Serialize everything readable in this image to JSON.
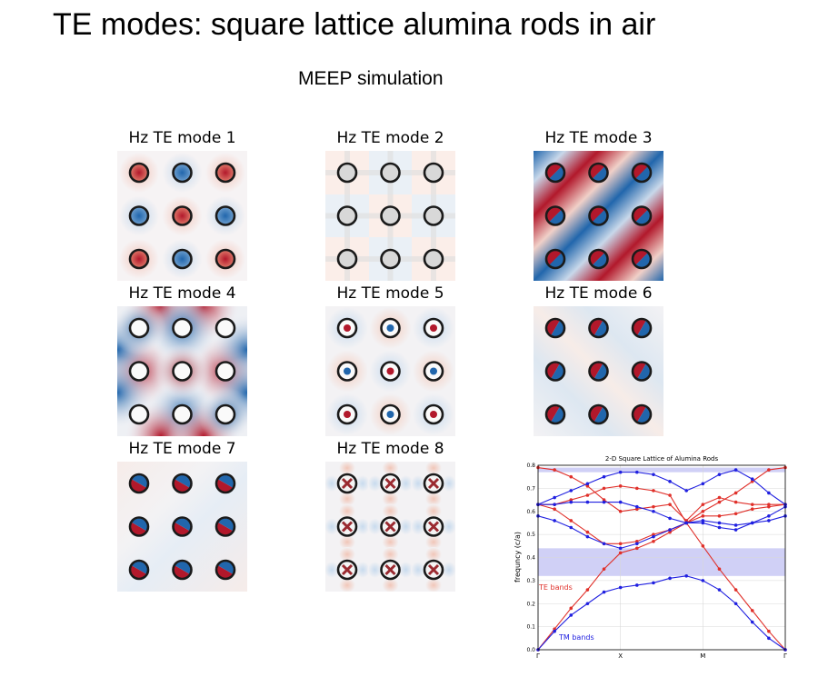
{
  "slide": {
    "title": "TE modes: square lattice alumina rods in air",
    "subtitle": "MEEP simulation"
  },
  "panels": [
    {
      "label": "Hz TE mode 1"
    },
    {
      "label": "Hz TE mode 2"
    },
    {
      "label": "Hz TE mode 3"
    },
    {
      "label": "Hz TE mode 4"
    },
    {
      "label": "Hz TE mode 5"
    },
    {
      "label": "Hz TE mode 6"
    },
    {
      "label": "Hz TE mode 7"
    },
    {
      "label": "Hz TE mode 8"
    }
  ],
  "colors": {
    "red": "#b2182b",
    "blue": "#2166ac",
    "te": "#e0302a",
    "tm": "#2020e0",
    "gap": "#c8c8f4"
  },
  "chart_data": {
    "type": "line",
    "title": "2-D Square Lattice of Alumina Rods",
    "ylabel": "frequncy (c/a)",
    "xlabel": "",
    "x_ticks": [
      "Γ",
      "X",
      "M",
      "Γ"
    ],
    "y_ticks": [
      "0.0",
      "0.1",
      "0.2",
      "0.3",
      "0.4",
      "0.5",
      "0.6",
      "0.7",
      "0.8"
    ],
    "ylim": [
      0,
      0.8
    ],
    "grid": true,
    "band_gaps": [
      [
        0.32,
        0.44
      ],
      [
        0.77,
        0.79
      ]
    ],
    "annotations": [
      {
        "text": "TE bands",
        "color": "#e0302a"
      },
      {
        "text": "TM bands",
        "color": "#2020e0"
      }
    ],
    "x": [
      0,
      0.2,
      0.4,
      0.6,
      0.8,
      1.0,
      1.2,
      1.4,
      1.6,
      1.8,
      2.0,
      2.2,
      2.4,
      2.6,
      2.8,
      3.0
    ],
    "series": [
      {
        "name": "TE",
        "color": "#e0302a",
        "values": [
          0,
          0.09,
          0.18,
          0.26,
          0.35,
          0.42,
          0.44,
          0.47,
          0.51,
          0.55,
          0.45,
          0.35,
          0.26,
          0.17,
          0.08,
          0
        ]
      },
      {
        "name": "TE",
        "color": "#e0302a",
        "values": [
          0.63,
          0.61,
          0.56,
          0.51,
          0.46,
          0.46,
          0.47,
          0.5,
          0.52,
          0.55,
          0.58,
          0.58,
          0.59,
          0.61,
          0.62,
          0.63
        ]
      },
      {
        "name": "TE",
        "color": "#e0302a",
        "values": [
          0.63,
          0.63,
          0.65,
          0.67,
          0.7,
          0.71,
          0.7,
          0.69,
          0.67,
          0.55,
          0.6,
          0.64,
          0.68,
          0.73,
          0.78,
          0.79
        ]
      },
      {
        "name": "TE",
        "color": "#e0302a",
        "values": [
          0.79,
          0.78,
          0.75,
          0.71,
          0.65,
          0.6,
          0.61,
          0.62,
          0.63,
          0.56,
          0.63,
          0.66,
          0.64,
          0.63,
          0.63,
          0.63
        ]
      },
      {
        "name": "TM",
        "color": "#2020e0",
        "values": [
          0,
          0.08,
          0.15,
          0.2,
          0.25,
          0.27,
          0.28,
          0.29,
          0.31,
          0.32,
          0.3,
          0.26,
          0.2,
          0.12,
          0.05,
          0
        ]
      },
      {
        "name": "TM",
        "color": "#2020e0",
        "values": [
          0.58,
          0.56,
          0.53,
          0.49,
          0.46,
          0.44,
          0.46,
          0.49,
          0.52,
          0.55,
          0.56,
          0.55,
          0.54,
          0.55,
          0.56,
          0.58
        ]
      },
      {
        "name": "TM",
        "color": "#2020e0",
        "values": [
          0.63,
          0.63,
          0.64,
          0.64,
          0.64,
          0.64,
          0.62,
          0.6,
          0.57,
          0.55,
          0.55,
          0.53,
          0.52,
          0.55,
          0.58,
          0.62
        ]
      },
      {
        "name": "TM",
        "color": "#2020e0",
        "values": [
          0.63,
          0.66,
          0.69,
          0.72,
          0.75,
          0.77,
          0.77,
          0.76,
          0.73,
          0.69,
          0.72,
          0.76,
          0.78,
          0.74,
          0.68,
          0.63
        ]
      }
    ]
  }
}
